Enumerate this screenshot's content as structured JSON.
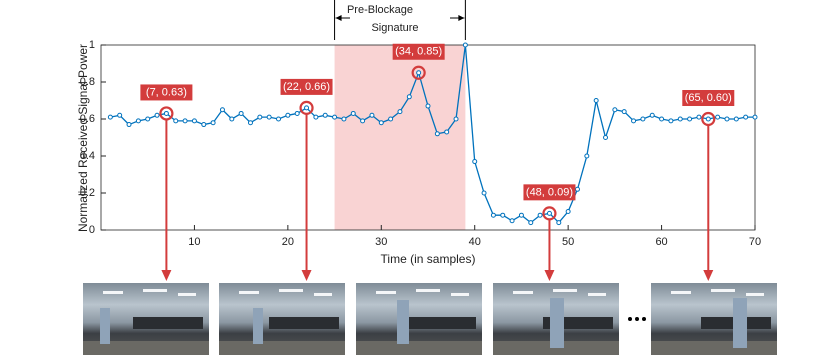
{
  "chart_data": {
    "type": "line",
    "xlabel": "Time (in samples)",
    "ylabel": "Normalized Received Signal Power",
    "x": [
      1,
      2,
      3,
      4,
      5,
      6,
      7,
      8,
      9,
      10,
      11,
      12,
      13,
      14,
      15,
      16,
      17,
      18,
      19,
      20,
      21,
      22,
      23,
      24,
      25,
      26,
      27,
      28,
      29,
      30,
      31,
      32,
      33,
      34,
      35,
      36,
      37,
      38,
      39,
      40,
      41,
      42,
      43,
      44,
      45,
      46,
      47,
      48,
      49,
      50,
      51,
      52,
      53,
      54,
      55,
      56,
      57,
      58,
      59,
      60,
      61,
      62,
      63,
      64,
      65,
      66,
      67,
      68,
      69,
      70
    ],
    "series": [
      {
        "color": "#0072bd",
        "values": [
          0.61,
          0.62,
          0.57,
          0.59,
          0.6,
          0.62,
          0.63,
          0.59,
          0.59,
          0.59,
          0.57,
          0.58,
          0.65,
          0.6,
          0.63,
          0.58,
          0.61,
          0.61,
          0.6,
          0.62,
          0.63,
          0.66,
          0.61,
          0.62,
          0.61,
          0.6,
          0.63,
          0.59,
          0.62,
          0.58,
          0.6,
          0.64,
          0.72,
          0.85,
          0.67,
          0.52,
          0.53,
          0.6,
          1.0,
          0.37,
          0.2,
          0.08,
          0.08,
          0.05,
          0.08,
          0.04,
          0.08,
          0.09,
          0.04,
          0.1,
          0.22,
          0.4,
          0.7,
          0.5,
          0.65,
          0.64,
          0.59,
          0.6,
          0.62,
          0.6,
          0.59,
          0.6,
          0.6,
          0.61,
          0.6,
          0.61,
          0.6,
          0.6,
          0.61,
          0.61
        ]
      }
    ],
    "xlim": [
      0,
      70
    ],
    "xticks": [
      10,
      20,
      30,
      40,
      50,
      60,
      70
    ],
    "ylim": [
      0,
      1
    ],
    "yticks": [
      0,
      0.2,
      0.4,
      0.6,
      0.8,
      1
    ],
    "shaded_region": {
      "x": [
        25,
        39
      ],
      "color": "#f9d3d3",
      "label": [
        "Pre-Blockage",
        "Signature"
      ]
    },
    "annotations": [
      {
        "x": 7,
        "y": 0.63,
        "label": "(7, 0.63)"
      },
      {
        "x": 22,
        "y": 0.66,
        "label": "(22, 0.66)"
      },
      {
        "x": 34,
        "y": 0.85,
        "label": "(34, 0.85)"
      },
      {
        "x": 48,
        "y": 0.09,
        "label": "(48, 0.09)"
      },
      {
        "x": 65,
        "y": 0.6,
        "label": "(65, 0.60)"
      }
    ],
    "annotation_color": "#d33c3c"
  }
}
